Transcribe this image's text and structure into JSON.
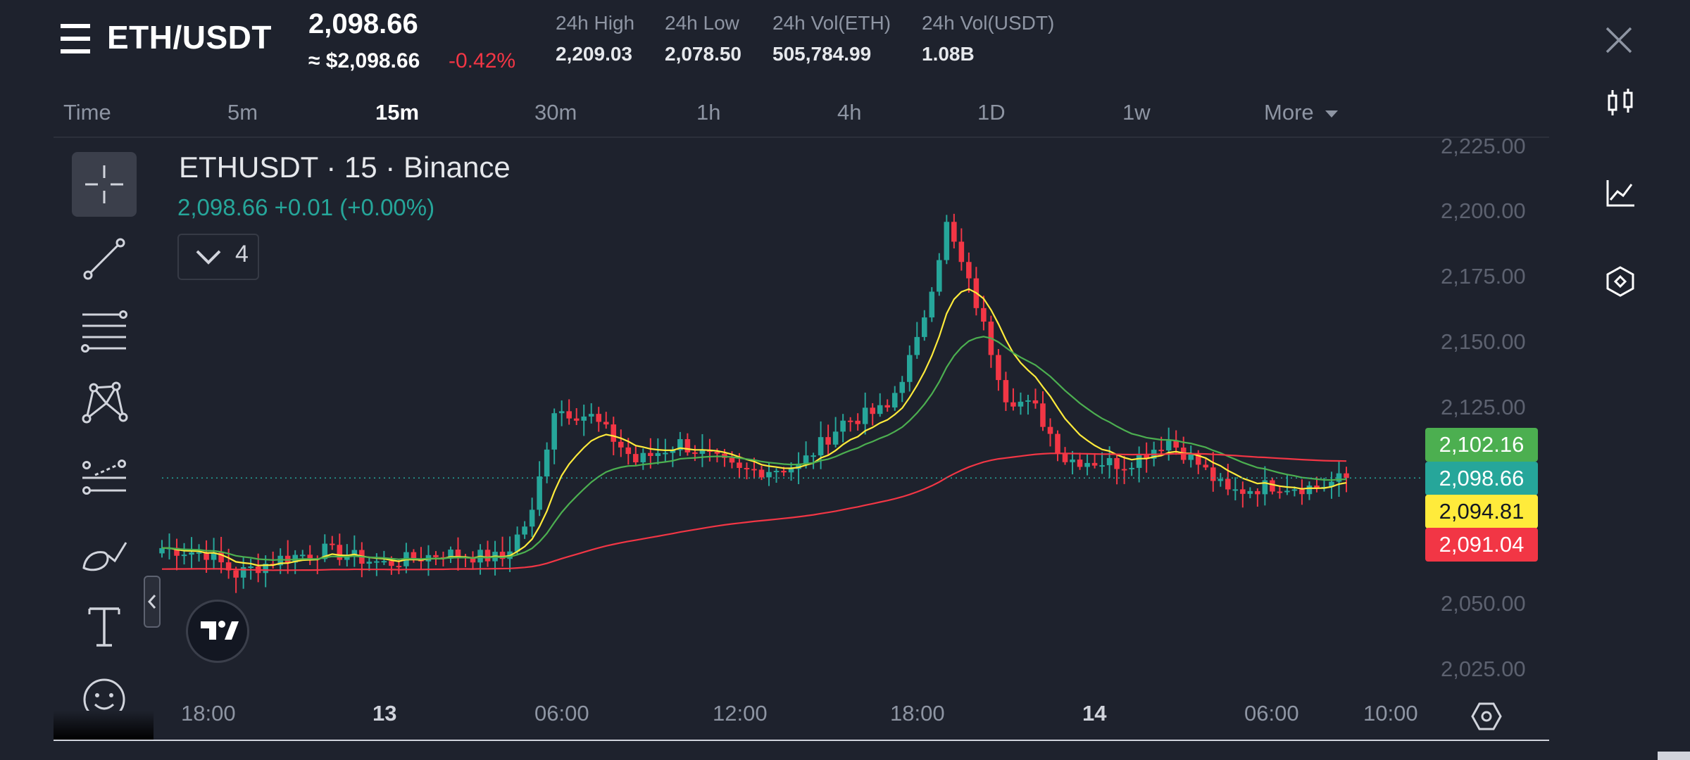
{
  "header": {
    "pair": "ETH/USDT",
    "last_price": "2,098.66",
    "usd_price": "≈ $2,098.66",
    "change_pct": "-0.42%",
    "stats": [
      {
        "label": "24h High",
        "value": "2,209.03"
      },
      {
        "label": "24h Low",
        "value": "2,078.50"
      },
      {
        "label": "24h Vol(ETH)",
        "value": "505,784.99"
      },
      {
        "label": "24h Vol(USDT)",
        "value": "1.08B"
      }
    ]
  },
  "timeframes": {
    "items": [
      "Time",
      "5m",
      "15m",
      "30m",
      "1h",
      "4h",
      "1D",
      "1w",
      "More"
    ],
    "active": "15m"
  },
  "chart": {
    "title": "ETHUSDT · 15 · Binance",
    "quote": "2,098.66  +0.01 (+0.00%)",
    "indicator_count": "4",
    "price_axis": [
      "2,225.00",
      "2,200.00",
      "2,175.00",
      "2,150.00",
      "2,125.00",
      "2,050.00",
      "2,025.00"
    ],
    "price_tags": [
      {
        "value": "2,102.16",
        "color": "#4caf50"
      },
      {
        "value": "2,098.66",
        "color": "#26a69a"
      },
      {
        "value": "2,094.81",
        "color": "#ffeb3b"
      },
      {
        "value": "2,091.04",
        "color": "#f23645"
      }
    ],
    "time_axis": [
      {
        "label": "18:00",
        "bold": false
      },
      {
        "label": "13",
        "bold": true
      },
      {
        "label": "06:00",
        "bold": false
      },
      {
        "label": "12:00",
        "bold": false
      },
      {
        "label": "18:00",
        "bold": false
      },
      {
        "label": "14",
        "bold": true
      },
      {
        "label": "06:00",
        "bold": false
      },
      {
        "label": "10:00",
        "bold": false
      }
    ]
  },
  "colors": {
    "background": "#1e222d",
    "up": "#26a69a",
    "down": "#f23645",
    "ma_short": "#ffeb3b",
    "ma_mid": "#4caf50",
    "ma_long": "#f23645"
  },
  "icons": {
    "menu": "menu-icon",
    "close": "close-icon",
    "right_toolbar": [
      "candlestick-icon",
      "line-chart-icon",
      "indicator-hex-icon"
    ],
    "left_toolbar": [
      "crosshair-icon",
      "trend-line-icon",
      "fib-levels-icon",
      "pattern-icon",
      "projection-icon",
      "brush-icon",
      "text-icon",
      "emoji-icon"
    ]
  },
  "chart_data": {
    "type": "candlestick",
    "symbol": "ETHUSDT",
    "interval": "15",
    "exchange": "Binance",
    "x_ticks": [
      "18:00",
      "13",
      "06:00",
      "12:00",
      "18:00",
      "14",
      "06:00",
      "10:00"
    ],
    "y_ticks": [
      2025,
      2050,
      2125,
      2150,
      2175,
      2200,
      2225
    ],
    "ylim": [
      2017,
      2230
    ],
    "close_path": [
      {
        "t": "12 16:30",
        "p": 2072
      },
      {
        "t": "12 18:00",
        "p": 2070
      },
      {
        "t": "12 19:00",
        "p": 2062
      },
      {
        "t": "12 20:30",
        "p": 2068
      },
      {
        "t": "12 22:00",
        "p": 2071
      },
      {
        "t": "13 00:00",
        "p": 2066
      },
      {
        "t": "13 02:00",
        "p": 2070
      },
      {
        "t": "13 04:00",
        "p": 2068
      },
      {
        "t": "13 05:00",
        "p": 2085
      },
      {
        "t": "13 05:45",
        "p": 2125
      },
      {
        "t": "13 07:00",
        "p": 2122
      },
      {
        "t": "13 08:30",
        "p": 2105
      },
      {
        "t": "13 10:00",
        "p": 2112
      },
      {
        "t": "13 12:00",
        "p": 2101
      },
      {
        "t": "13 14:00",
        "p": 2103
      },
      {
        "t": "13 15:30",
        "p": 2120
      },
      {
        "t": "13 17:00",
        "p": 2125
      },
      {
        "t": "13 18:00",
        "p": 2150
      },
      {
        "t": "13 19:00",
        "p": 2195
      },
      {
        "t": "13 20:00",
        "p": 2165
      },
      {
        "t": "13 21:00",
        "p": 2130
      },
      {
        "t": "13 22:00",
        "p": 2125
      },
      {
        "t": "13 23:00",
        "p": 2106
      },
      {
        "t": "14 01:00",
        "p": 2104
      },
      {
        "t": "14 02:30",
        "p": 2113
      },
      {
        "t": "14 03:30",
        "p": 2104
      },
      {
        "t": "14 04:30",
        "p": 2093
      },
      {
        "t": "14 06:00",
        "p": 2096
      },
      {
        "t": "14 07:30",
        "p": 2095
      },
      {
        "t": "14 08:30",
        "p": 2099
      }
    ],
    "moving_averages": [
      {
        "color": "#ffeb3b",
        "last": 2094.81
      },
      {
        "color": "#4caf50",
        "last": 2102.16
      },
      {
        "color": "#f23645",
        "last": 2091.04
      }
    ],
    "last_price": 2098.66
  }
}
